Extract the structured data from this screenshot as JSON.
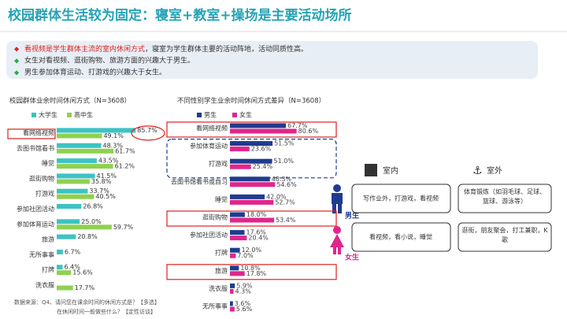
{
  "title": "校园群体生活较为固定：寝室+教室+操场是主要活动场所",
  "bullets": [
    {
      "highlight": "看视频是学生群体主流的室内休闲方式",
      "text": "，寝室为学生群体主要的活动阵地，活动同质性高。"
    },
    {
      "text": "女生对看视频、逛街购物、旅游方面的兴趣大于男生。"
    },
    {
      "text": "男生参加体育运动、打游戏的兴趣大于女生。"
    }
  ],
  "chart_data": [
    {
      "type": "barh",
      "title": "校园群体业余时间休闲方式（N=3608）",
      "categories": [
        "看网络视频",
        "去图书馆看书",
        "睡觉",
        "逛街购物",
        "打游戏",
        "参加社团活动",
        "参加体育运动",
        "旅游",
        "无所事事",
        "打牌",
        "洗衣服"
      ],
      "xlim": [
        0,
        100
      ],
      "series": [
        {
          "name": "大学生",
          "color": "#3cc3c3",
          "values": [
            85.7,
            48.3,
            43.5,
            41.5,
            33.7,
            26.8,
            25.0,
            20.8,
            6.7,
            6.4,
            null
          ],
          "value_labels": [
            "85.7%",
            "48.3%",
            "43.5%",
            "41.5%",
            "33.7%",
            "26.8%",
            "25.0%",
            "20.8%",
            "6.7%",
            "6.4%",
            null
          ]
        },
        {
          "name": "高中生",
          "color": "#8fd14f",
          "values": [
            49.1,
            61.7,
            61.2,
            35.8,
            40.5,
            null,
            59.7,
            null,
            null,
            15.6,
            17.7
          ],
          "value_labels": [
            "49.1%",
            "61.7%",
            "61.2%",
            "35.8%",
            "40.5%",
            null,
            "59.7%",
            null,
            null,
            "15.6%",
            "17.7%"
          ]
        }
      ]
    },
    {
      "type": "barh",
      "title": "不同性别学生业余时间休闲方式差异（N=3608）",
      "categories": [
        "看网络视频",
        "参加体育运动",
        "打游戏",
        "去图书馆看书或自习",
        "睡觉",
        "逛街购物",
        "参加社团活动",
        "打牌",
        "旅游",
        "洗衣服",
        "无所事事"
      ],
      "xlim": [
        0,
        100
      ],
      "series": [
        {
          "name": "男生",
          "color": "#1f3b8f",
          "values": [
            67.7,
            51.5,
            51.0,
            48.3,
            42.0,
            18.0,
            17.6,
            12.0,
            10.8,
            5.9,
            3.6
          ],
          "value_labels": [
            "67.7%",
            "51.5%",
            "51.0%",
            "48.3%",
            "42.0%",
            "18.0%",
            "17.6%",
            "12.0%",
            "10.8%",
            "5.9%",
            "3.6%"
          ]
        },
        {
          "name": "女生",
          "color": "#e0268c",
          "values": [
            80.6,
            23.6,
            25.4,
            54.6,
            52.7,
            53.4,
            20.4,
            7.0,
            17.8,
            4.3,
            5.6
          ],
          "value_labels": [
            "80.6%",
            "23.6%",
            "25.4%",
            "54.6%",
            "52.7%",
            "53.4%",
            "20.4%",
            "7.0%",
            "17.8%",
            "4.3%",
            "5.6%"
          ]
        }
      ]
    }
  ],
  "panel": {
    "indoor": "室内",
    "outdoor": "室外",
    "male": "男生",
    "female": "女生",
    "male_indoor": "写作业外，打游戏，看视频",
    "male_outdoor": "体育锻炼（如羽毛球、足球、篮球、游泳等）",
    "female_indoor": "看视频，看小说，睡觉",
    "female_outdoor": "逛街，朋友聚会，打工兼职，K歌"
  },
  "source": [
    "数据来源：Q4、请问您在课余时间的休闲方式是？【多选】",
    "在休闲时间一般做些什么？【定性访谈】"
  ]
}
